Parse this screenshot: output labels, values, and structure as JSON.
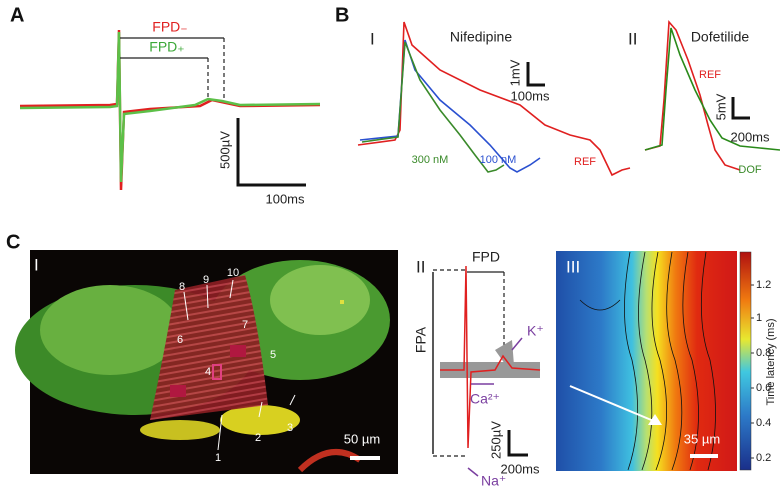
{
  "panel_a": {
    "label": "A",
    "fpd_minus": "FPD₋",
    "fpd_plus": "FPD₊",
    "scale_v": "500µV",
    "scale_t": "100ms"
  },
  "panel_b": {
    "label": "B",
    "i": {
      "numeral": "I",
      "title": "Nifedipine",
      "scale_v": "1mV",
      "scale_t": "100ms",
      "trace_300": "300 nM",
      "trace_100": "100 nM",
      "trace_ref": "REF"
    },
    "ii": {
      "numeral": "II",
      "title": "Dofetilide",
      "trace_ref": "REF",
      "scale_v": "5mV",
      "scale_t": "200ms",
      "trace_dof": "DOF"
    }
  },
  "panel_c": {
    "label": "C",
    "i": {
      "numeral": "I",
      "regions": [
        "1",
        "2",
        "3",
        "4",
        "5",
        "6",
        "7",
        "8",
        "9",
        "10"
      ],
      "scale": "50 µm"
    },
    "ii": {
      "numeral": "II",
      "fpd": "FPD",
      "fpa": "FPA",
      "k": "K⁺",
      "ca": "Ca²⁺",
      "na": "Na⁺",
      "scale_v": "250µV",
      "scale_t": "200ms"
    },
    "iii": {
      "numeral": "III",
      "scale": "35 µm",
      "colorbar_label": "Time latency (ms)",
      "colorbar_ticks": [
        "1.2",
        "1",
        "0.8",
        "0.6",
        "0.4",
        "0.2"
      ]
    }
  }
}
